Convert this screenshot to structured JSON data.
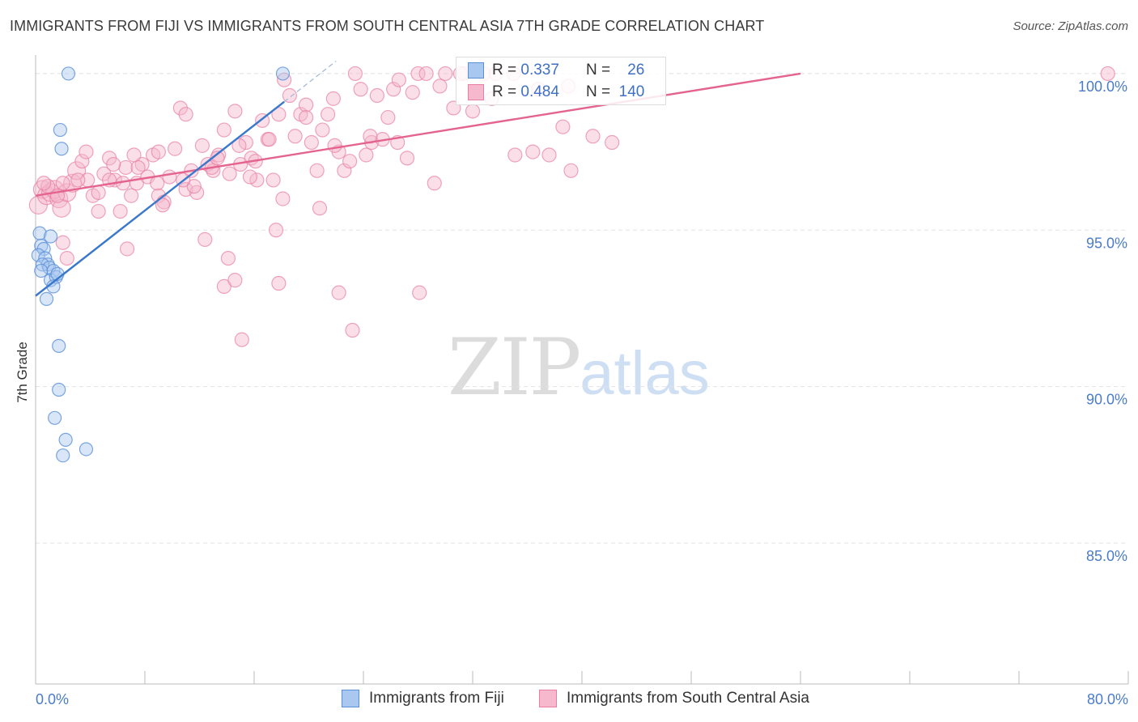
{
  "header": {
    "title": "IMMIGRANTS FROM FIJI VS IMMIGRANTS FROM SOUTH CENTRAL ASIA 7TH GRADE CORRELATION CHART",
    "source": "Source: ZipAtlas.com"
  },
  "watermark": {
    "zip": "ZIP",
    "atlas": "atlas"
  },
  "legend": {
    "fiji": {
      "r_label": "R =",
      "r_value": "0.337",
      "n_label": "N =",
      "n_value": "26"
    },
    "sca": {
      "r_label": "R =",
      "r_value": "0.484",
      "n_label": "N =",
      "n_value": "140"
    }
  },
  "bottom_legend": {
    "fiji": "Immigrants from Fiji",
    "sca": "Immigrants from South Central Asia"
  },
  "colors": {
    "fiji_fill": "#a9c8f0",
    "fiji_stroke": "#5b90d8",
    "fiji_line": "#3a78cc",
    "sca_fill": "#f5b8cc",
    "sca_stroke": "#e87fa3",
    "sca_line": "#e4638f"
  },
  "chart_data": {
    "type": "scatter",
    "title": "IMMIGRANTS FROM FIJI VS IMMIGRANTS FROM SOUTH CENTRAL ASIA 7TH GRADE CORRELATION CHART",
    "xlabel": "",
    "ylabel": "7th Grade",
    "xlim": [
      0,
      80
    ],
    "ylim": [
      80.5,
      100.8
    ],
    "x_tick_labels": [
      "0.0%",
      "80.0%"
    ],
    "y_ticks": [
      85,
      90,
      95,
      100
    ],
    "y_tick_labels": [
      "85.0%",
      "90.0%",
      "95.0%",
      "100.0%"
    ],
    "grid": true,
    "series": [
      {
        "name": "Immigrants from Fiji",
        "R": 0.337,
        "N": 26,
        "trend": {
          "x0": 0,
          "y0": 92.9,
          "x1": 18.2,
          "y1": 99.1
        },
        "trend_dashed": {
          "x0": 18.2,
          "y0": 99.1,
          "x1": 22.0,
          "y1": 100.4
        },
        "points": [
          [
            2.4,
            100.0
          ],
          [
            18.1,
            100.0
          ],
          [
            1.8,
            98.2
          ],
          [
            1.9,
            97.6
          ],
          [
            0.3,
            94.9
          ],
          [
            1.1,
            94.8
          ],
          [
            0.4,
            94.5
          ],
          [
            0.6,
            94.4
          ],
          [
            0.2,
            94.2
          ],
          [
            0.7,
            94.1
          ],
          [
            0.9,
            93.9
          ],
          [
            0.5,
            93.9
          ],
          [
            1.0,
            93.8
          ],
          [
            1.3,
            93.7
          ],
          [
            0.4,
            93.7
          ],
          [
            1.1,
            93.4
          ],
          [
            1.5,
            93.5
          ],
          [
            1.3,
            93.2
          ],
          [
            0.8,
            92.8
          ],
          [
            1.7,
            91.3
          ],
          [
            1.7,
            89.9
          ],
          [
            1.4,
            89.0
          ],
          [
            2.2,
            88.3
          ],
          [
            2.0,
            87.8
          ],
          [
            3.7,
            88.0
          ],
          [
            1.6,
            93.6
          ]
        ]
      },
      {
        "name": "Immigrants from South Central Asia",
        "R": 0.484,
        "N": 140,
        "trend": {
          "x0": 0,
          "y0": 96.1,
          "x1": 56.0,
          "y1": 100.0
        },
        "points": [
          [
            0.2,
            95.8
          ],
          [
            0.5,
            96.3
          ],
          [
            0.8,
            96.1
          ],
          [
            1.1,
            96.2
          ],
          [
            1.4,
            96.3
          ],
          [
            1.7,
            96.0
          ],
          [
            1.9,
            95.7
          ],
          [
            2.3,
            96.2
          ],
          [
            2.7,
            96.5
          ],
          [
            3.0,
            96.9
          ],
          [
            3.4,
            97.2
          ],
          [
            3.8,
            96.6
          ],
          [
            4.2,
            96.1
          ],
          [
            4.6,
            95.6
          ],
          [
            5.0,
            96.8
          ],
          [
            5.4,
            97.3
          ],
          [
            5.8,
            96.6
          ],
          [
            6.2,
            95.6
          ],
          [
            6.6,
            97.0
          ],
          [
            7.0,
            96.1
          ],
          [
            7.4,
            96.5
          ],
          [
            7.8,
            97.1
          ],
          [
            8.2,
            96.7
          ],
          [
            8.6,
            97.4
          ],
          [
            9.0,
            96.1
          ],
          [
            9.4,
            95.9
          ],
          [
            9.8,
            96.7
          ],
          [
            10.2,
            97.6
          ],
          [
            10.6,
            98.9
          ],
          [
            11.0,
            96.3
          ],
          [
            11.4,
            96.9
          ],
          [
            11.8,
            96.2
          ],
          [
            12.2,
            97.7
          ],
          [
            12.6,
            97.1
          ],
          [
            13.0,
            96.9
          ],
          [
            13.4,
            97.4
          ],
          [
            13.8,
            98.2
          ],
          [
            14.2,
            96.8
          ],
          [
            14.6,
            98.8
          ],
          [
            15.0,
            97.1
          ],
          [
            15.4,
            97.8
          ],
          [
            15.8,
            97.3
          ],
          [
            16.2,
            96.6
          ],
          [
            16.6,
            98.5
          ],
          [
            17.0,
            97.9
          ],
          [
            17.4,
            96.6
          ],
          [
            17.8,
            98.7
          ],
          [
            18.2,
            99.8
          ],
          [
            18.6,
            99.3
          ],
          [
            19.0,
            98.0
          ],
          [
            19.4,
            98.7
          ],
          [
            19.8,
            99.0
          ],
          [
            20.2,
            97.8
          ],
          [
            20.6,
            96.9
          ],
          [
            21.0,
            98.2
          ],
          [
            21.4,
            98.7
          ],
          [
            21.8,
            99.2
          ],
          [
            22.2,
            97.5
          ],
          [
            22.6,
            96.9
          ],
          [
            23.0,
            97.2
          ],
          [
            23.4,
            100.0
          ],
          [
            23.8,
            99.5
          ],
          [
            24.2,
            97.4
          ],
          [
            24.6,
            97.8
          ],
          [
            25.0,
            99.3
          ],
          [
            25.4,
            97.9
          ],
          [
            25.8,
            98.6
          ],
          [
            26.2,
            99.5
          ],
          [
            26.6,
            99.8
          ],
          [
            27.2,
            97.3
          ],
          [
            28.0,
            100.0
          ],
          [
            28.6,
            100.0
          ],
          [
            29.2,
            96.5
          ],
          [
            30.0,
            100.0
          ],
          [
            30.6,
            98.9
          ],
          [
            31.4,
            100.0
          ],
          [
            32.0,
            98.8
          ],
          [
            32.8,
            100.0
          ],
          [
            33.4,
            99.2
          ],
          [
            35.0,
            100.0
          ],
          [
            36.4,
            97.5
          ],
          [
            37.6,
            97.4
          ],
          [
            38.6,
            98.3
          ],
          [
            39.2,
            96.9
          ],
          [
            78.5,
            100.0
          ],
          [
            2.0,
            94.6
          ],
          [
            2.3,
            94.1
          ],
          [
            6.7,
            94.4
          ],
          [
            12.4,
            94.7
          ],
          [
            14.1,
            94.1
          ],
          [
            13.8,
            93.2
          ],
          [
            14.6,
            93.4
          ],
          [
            17.8,
            93.3
          ],
          [
            22.2,
            93.0
          ],
          [
            15.1,
            91.5
          ],
          [
            23.2,
            91.8
          ],
          [
            28.1,
            93.0
          ],
          [
            17.6,
            95.0
          ],
          [
            20.8,
            95.7
          ],
          [
            18.1,
            96.0
          ],
          [
            11.6,
            96.4
          ],
          [
            9.3,
            95.8
          ],
          [
            4.6,
            96.2
          ],
          [
            3.1,
            96.6
          ],
          [
            2.0,
            96.5
          ],
          [
            1.6,
            96.1
          ],
          [
            0.9,
            96.4
          ],
          [
            0.6,
            96.5
          ],
          [
            5.4,
            96.6
          ],
          [
            7.5,
            97.0
          ],
          [
            8.9,
            96.5
          ],
          [
            10.8,
            96.6
          ],
          [
            12.9,
            97.0
          ],
          [
            15.7,
            96.7
          ],
          [
            16.1,
            97.2
          ],
          [
            11.0,
            98.7
          ],
          [
            9.0,
            97.5
          ],
          [
            7.2,
            97.4
          ],
          [
            5.7,
            97.1
          ],
          [
            3.7,
            97.5
          ],
          [
            6.4,
            96.5
          ],
          [
            13.3,
            97.3
          ],
          [
            14.9,
            97.7
          ],
          [
            17.1,
            97.9
          ],
          [
            19.8,
            98.6
          ],
          [
            21.9,
            97.7
          ],
          [
            24.5,
            98.0
          ],
          [
            26.5,
            97.8
          ],
          [
            27.6,
            99.4
          ],
          [
            29.6,
            99.6
          ],
          [
            31.1,
            100.0
          ],
          [
            33.7,
            100.0
          ],
          [
            35.1,
            97.4
          ],
          [
            36.8,
            99.5
          ],
          [
            39.0,
            99.6
          ],
          [
            40.8,
            98.0
          ],
          [
            42.2,
            97.8
          ]
        ]
      }
    ]
  }
}
